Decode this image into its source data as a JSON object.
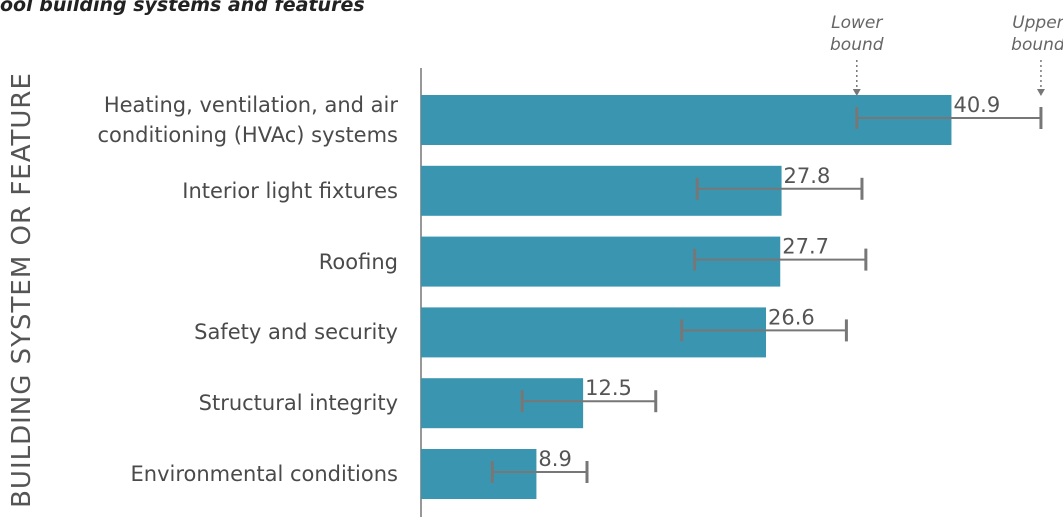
{
  "chart_data": {
    "type": "bar",
    "orientation": "horizontal",
    "title": "ool building systems and features",
    "y_label": "BUILDING SYSTEM OR FEATURE",
    "annotations": [
      "Lower bound",
      "Upper bound"
    ],
    "categories": [
      "Heating, ventilation, and air conditioning (HVAc) systems",
      "Interior light fixtures",
      "Roofing",
      "Safety and security",
      "Structural integrity",
      "Environmental conditions"
    ],
    "series": [
      {
        "color": "#3a96b0",
        "values": [
          40.9,
          27.8,
          27.7,
          26.6,
          12.5,
          8.9
        ],
        "lower": [
          33.6,
          21.3,
          21.1,
          20.1,
          7.8,
          5.5
        ],
        "upper": [
          47.8,
          34.0,
          34.3,
          32.8,
          18.1,
          12.8
        ]
      }
    ],
    "xlim": [
      0,
      49.5
    ]
  }
}
